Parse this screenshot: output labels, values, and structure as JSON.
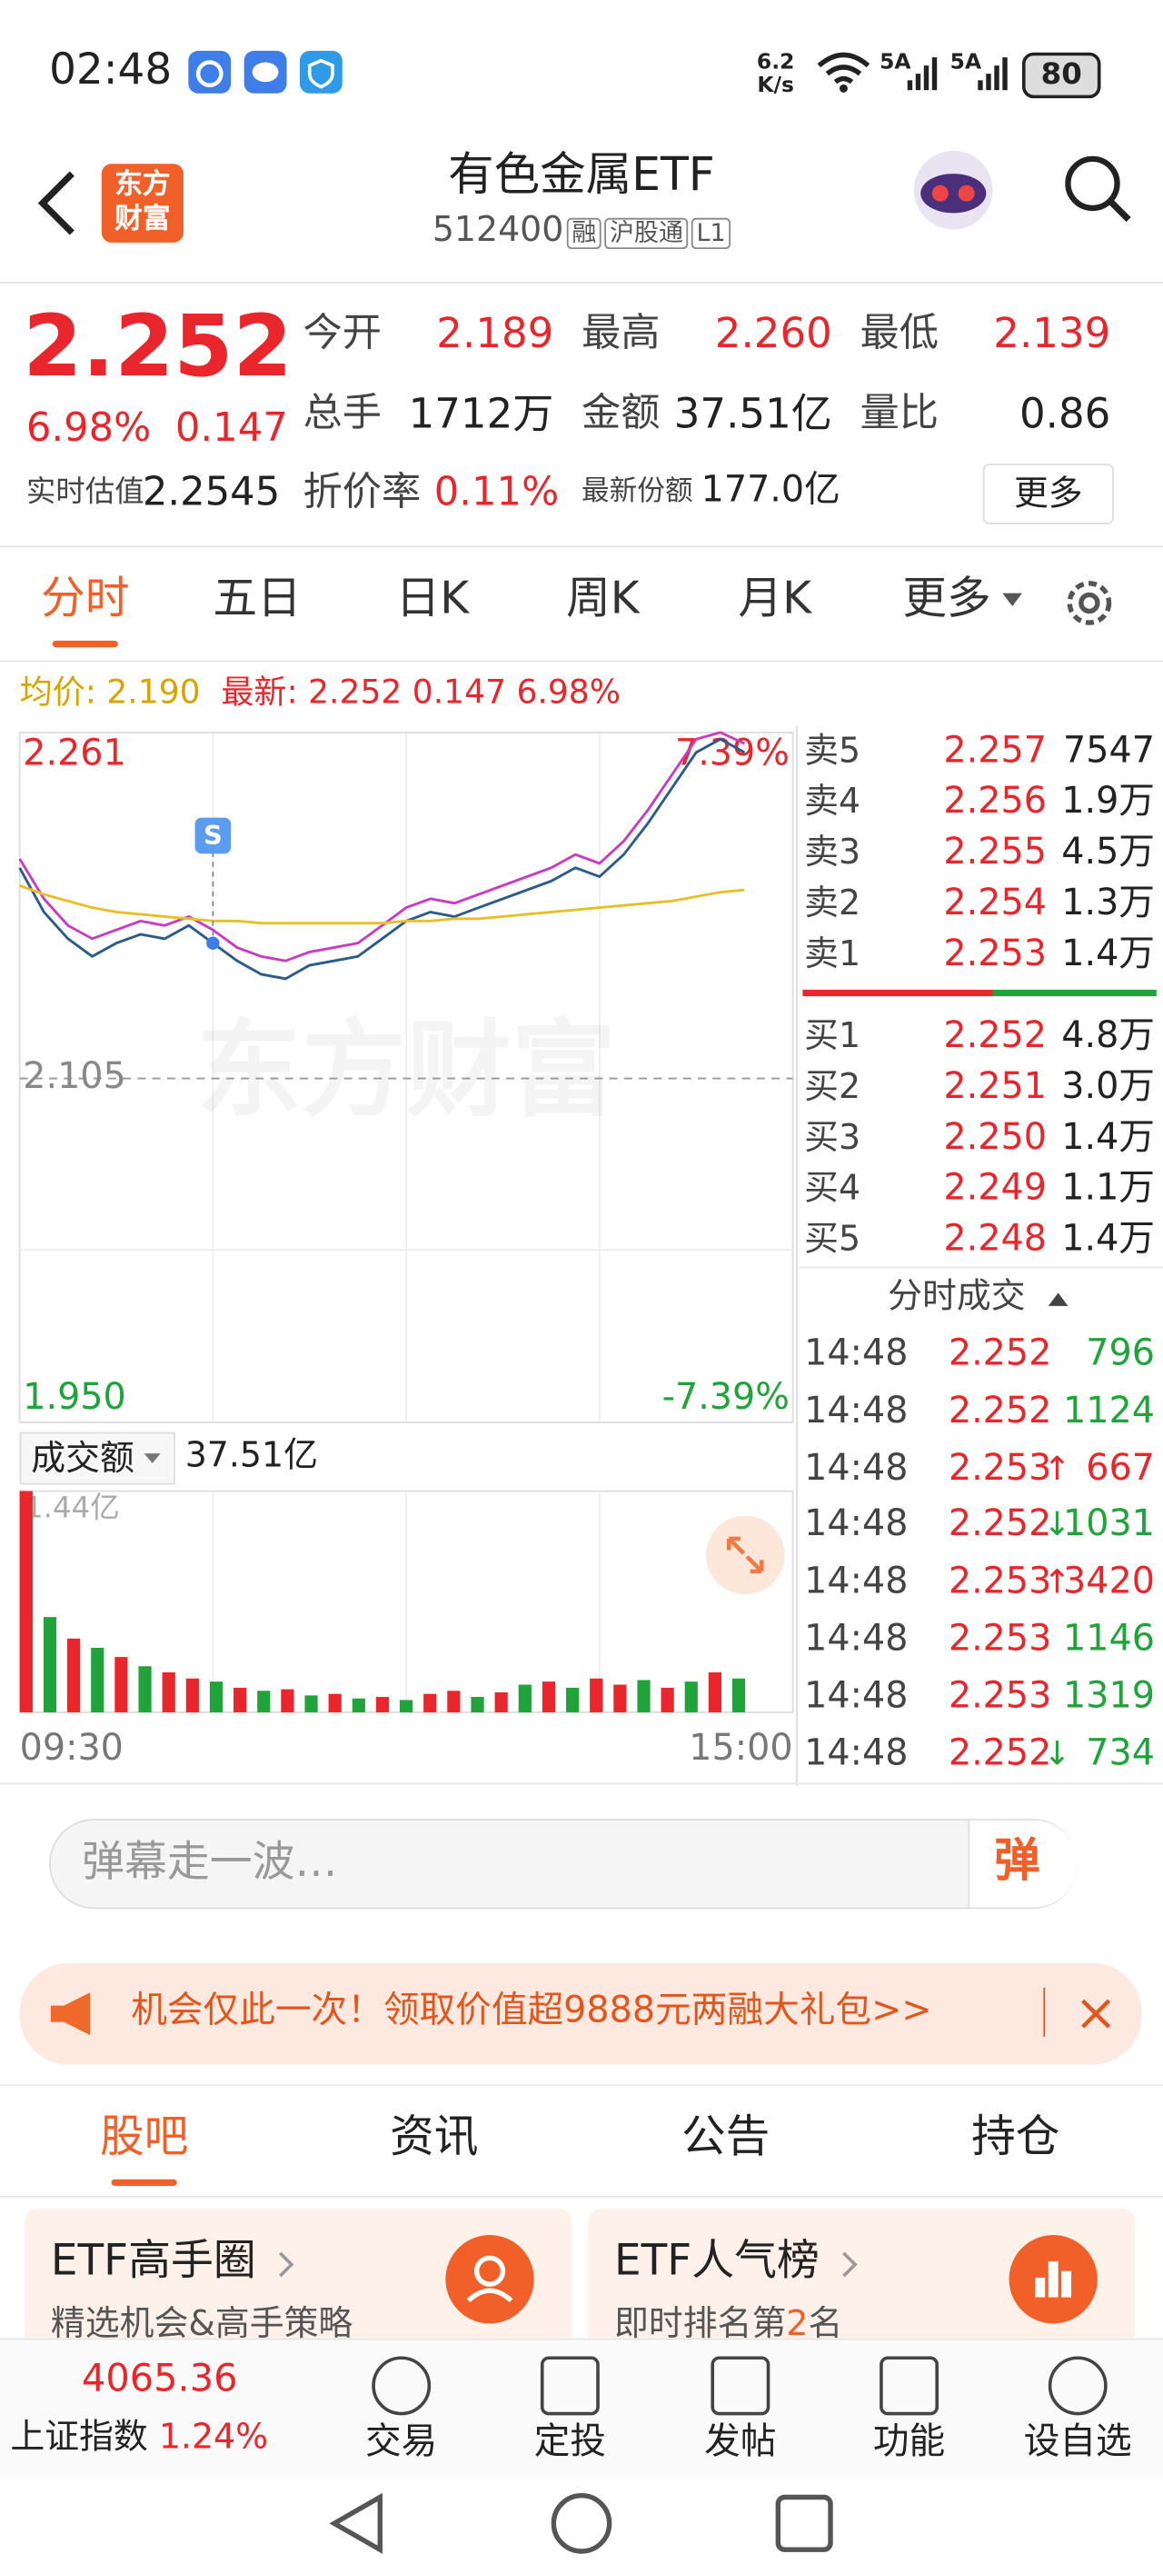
{
  "status_bar": {
    "time": "02:48",
    "speed": "6.2",
    "speed_unit": "K/s",
    "network1": "5A",
    "network2": "5A",
    "battery": "80"
  },
  "header": {
    "logo_line1": "东方",
    "logo_line2": "财富",
    "title": "有色金属ETF",
    "code": "512400",
    "tags": [
      "融",
      "沪股通",
      "L1"
    ]
  },
  "quote": {
    "price": "2.252",
    "change_pct": "6.98%",
    "change": "0.147",
    "fields": [
      [
        "今开",
        "2.189"
      ],
      [
        "最高",
        "2.260"
      ],
      [
        "最低",
        "2.139"
      ],
      [
        "总手",
        "1712万"
      ],
      [
        "金额",
        "37.51亿"
      ],
      [
        "量比",
        "0.86"
      ]
    ],
    "est_label": "实时估值",
    "est_value": "2.2545",
    "premium_label": "折价率",
    "premium_value": "0.11%",
    "share_label": "最新份额",
    "share_value": "177.0亿",
    "more": "更多"
  },
  "tabs": {
    "items": [
      "分时",
      "五日",
      "日K",
      "周K",
      "月K",
      "更多"
    ],
    "active": 0
  },
  "chart_info": {
    "avg": "均价: 2.190",
    "latest": "最新: 2.252 0.147 6.98%"
  },
  "chart_data": [
    {
      "type": "line",
      "watermark": "东方财富",
      "marker": "S",
      "series": [
        {
          "color": "#2a5b8c",
          "values": [
            2.2,
            2.18,
            2.168,
            2.16,
            2.166,
            2.17,
            2.168,
            2.174,
            2.166,
            2.158,
            2.152,
            2.15,
            2.156,
            2.158,
            2.16,
            2.168,
            2.176,
            2.18,
            2.178,
            2.182,
            2.186,
            2.19,
            2.194,
            2.2,
            2.196,
            2.206,
            2.22,
            2.236,
            2.252,
            2.258,
            2.252,
            null,
            null
          ]
        },
        {
          "color": "#c83dbf",
          "values": [
            2.204,
            2.186,
            2.174,
            2.168,
            2.172,
            2.176,
            2.174,
            2.178,
            2.172,
            2.164,
            2.16,
            2.158,
            2.162,
            2.164,
            2.166,
            2.174,
            2.182,
            2.186,
            2.184,
            2.188,
            2.192,
            2.196,
            2.2,
            2.206,
            2.202,
            2.212,
            2.226,
            2.242,
            2.258,
            2.261,
            2.256,
            null,
            null
          ]
        },
        {
          "color": "#e6c02a",
          "values": [
            2.192,
            2.188,
            2.185,
            2.182,
            2.18,
            2.179,
            2.178,
            2.177,
            2.176,
            2.176,
            2.175,
            2.175,
            2.175,
            2.175,
            2.175,
            2.175,
            2.176,
            2.176,
            2.177,
            2.177,
            2.178,
            2.179,
            2.18,
            2.181,
            2.182,
            2.183,
            2.184,
            2.185,
            2.187,
            2.189,
            2.19,
            null,
            null
          ]
        }
      ],
      "ylim": [
        1.95,
        2.261
      ],
      "yticks": [
        2.261,
        2.105,
        {
          "value": 1.95,
          "label": "1.950"
        }
      ],
      "y2lim": [
        -7.39,
        7.39
      ],
      "y2ticks": [
        {
          "value": 7.39,
          "label": "7.39%"
        },
        {
          "value": -7.39,
          "label": "-7.39%"
        }
      ]
    },
    {
      "type": "bar",
      "title": "成交额",
      "total": "37.51亿",
      "categories": [
        "09:30",
        null,
        null,
        null,
        null,
        null,
        null,
        null,
        null,
        null,
        null,
        null,
        null,
        null,
        null,
        null,
        null,
        null,
        null,
        null,
        null,
        null,
        null,
        null,
        null,
        null,
        null,
        null,
        null,
        null,
        null,
        null,
        "15:00"
      ],
      "values": [
        1.44,
        0.62,
        0.48,
        0.42,
        0.36,
        0.3,
        0.26,
        0.22,
        0.2,
        0.16,
        0.14,
        0.15,
        0.11,
        0.12,
        0.09,
        0.1,
        0.08,
        0.12,
        0.14,
        0.1,
        0.13,
        0.18,
        0.2,
        0.16,
        0.22,
        0.18,
        0.21,
        0.16,
        0.2,
        0.26,
        0.22,
        null,
        null
      ],
      "colors": [
        "#e8262b",
        "#1fa33a",
        "#e8262b",
        "#1fa33a",
        "#e8262b",
        "#1fa33a",
        "#e8262b",
        "#e8262b",
        "#1fa33a",
        "#e8262b",
        "#1fa33a",
        "#e8262b",
        "#1fa33a",
        "#e8262b",
        "#1fa33a",
        "#e8262b",
        "#1fa33a",
        "#e8262b",
        "#e8262b",
        "#1fa33a",
        "#e8262b",
        "#1fa33a",
        "#e8262b",
        "#1fa33a",
        "#e8262b",
        "#e8262b",
        "#1fa33a",
        "#e8262b",
        "#1fa33a",
        "#e8262b",
        "#1fa33a",
        "#e8262b",
        "#1fa33a"
      ],
      "ylim": [
        0,
        1.44
      ],
      "yticks": [
        {
          "value": 1.44,
          "label": "1.44亿"
        }
      ]
    }
  ],
  "order_book": {
    "sell": [
      {
        "label": "卖5",
        "price": "2.257",
        "volume": "7547"
      },
      {
        "label": "卖4",
        "price": "2.256",
        "volume": "1.9万"
      },
      {
        "label": "卖3",
        "price": "2.255",
        "volume": "4.5万"
      },
      {
        "label": "卖2",
        "price": "2.254",
        "volume": "1.3万"
      },
      {
        "label": "卖1",
        "price": "2.253",
        "volume": "1.4万"
      }
    ],
    "buy": [
      {
        "label": "买1",
        "price": "2.252",
        "volume": "4.8万"
      },
      {
        "label": "买2",
        "price": "2.251",
        "volume": "3.0万"
      },
      {
        "label": "买3",
        "price": "2.250",
        "volume": "1.4万"
      },
      {
        "label": "买4",
        "price": "2.249",
        "volume": "1.1万"
      },
      {
        "label": "买5",
        "price": "2.248",
        "volume": "1.4万"
      }
    ]
  },
  "trades": {
    "title": "分时成交",
    "rows": [
      {
        "time": "14:48",
        "price": "2.252",
        "volume": "796",
        "color": "#1fa33a"
      },
      {
        "time": "14:48",
        "price": "2.252",
        "volume": "1124",
        "color": "#1fa33a"
      },
      {
        "time": "14:48",
        "price": "2.253",
        "arrow": "↑",
        "volume": "667",
        "color": "#e8262b"
      },
      {
        "time": "14:48",
        "price": "2.252",
        "arrow": "↓",
        "volume": "1031",
        "color": "#1fa33a"
      },
      {
        "time": "14:48",
        "price": "2.253",
        "arrow": "↑",
        "volume": "3420",
        "color": "#e8262b"
      },
      {
        "time": "14:48",
        "price": "2.253",
        "volume": "1146",
        "color": "#1fa33a"
      },
      {
        "time": "14:48",
        "price": "2.253",
        "volume": "1319",
        "color": "#1fa33a"
      },
      {
        "time": "14:48",
        "price": "2.252",
        "arrow": "↓",
        "volume": "734",
        "color": "#1fa33a"
      }
    ]
  },
  "comment": {
    "placeholder": "弹幕走一波…",
    "button": "弹"
  },
  "banner": {
    "text": "机会仅此一次！领取价值超9888元两融大礼包>>"
  },
  "section_tabs": {
    "items": [
      "股吧",
      "资讯",
      "公告",
      "持仓"
    ],
    "active": 0
  },
  "cards": [
    {
      "title": "ETF高手圈",
      "subtitle": "精选机会&高手策略"
    },
    {
      "title": "ETF人气榜",
      "subtitle_prefix": "即时排名第",
      "subtitle_rank": "2",
      "subtitle_suffix": "名"
    }
  ],
  "index_bar": {
    "value": "4065.36",
    "name": "上证指数",
    "change": "1.24%"
  },
  "nav": [
    "交易",
    "定投",
    "发帖",
    "功能",
    "设自选"
  ]
}
